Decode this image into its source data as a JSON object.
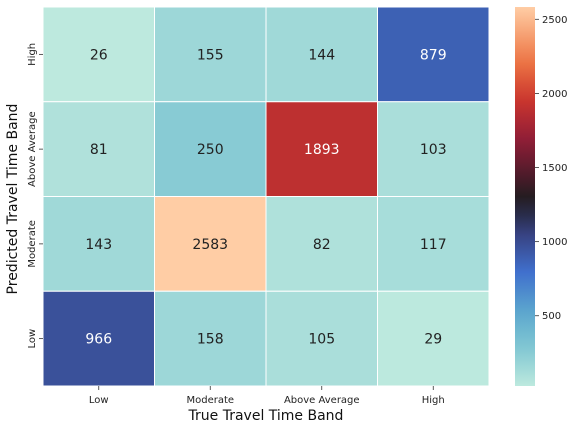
{
  "chart_data": {
    "type": "heatmap",
    "xlabel": "True Travel Time Band",
    "ylabel": "Predicted Travel Time Band",
    "x_categories": [
      "Low",
      "Moderate",
      "Above Average",
      "High"
    ],
    "y_categories_top_to_bottom": [
      "High",
      "Above Average",
      "Moderate",
      "Low"
    ],
    "matrix_top_to_bottom": [
      [
        26,
        155,
        144,
        879
      ],
      [
        81,
        250,
        1893,
        103
      ],
      [
        143,
        2583,
        82,
        117
      ],
      [
        966,
        158,
        105,
        29
      ]
    ],
    "colormap": "icefire",
    "vmin": 26,
    "vmax": 2583,
    "colorbar_ticks": [
      500,
      1000,
      1500,
      2000,
      2500
    ],
    "annotations": true,
    "grid": false
  }
}
